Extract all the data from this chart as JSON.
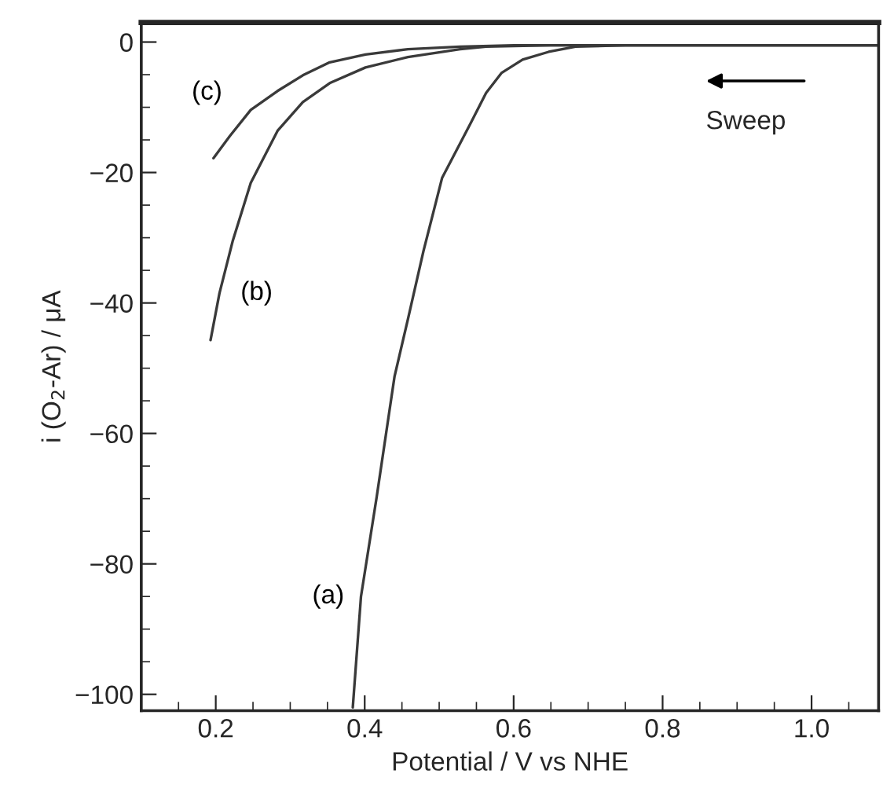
{
  "chart_data": {
    "type": "line",
    "xlabel": "Potential / V vs NHE",
    "ylabel": "i (O$_{2}$-Ar) / μA",
    "xlim": [
      0.1,
      1.09
    ],
    "ylim": [
      -102.5,
      3
    ],
    "xticks": [
      0.2,
      0.4,
      0.6,
      0.8,
      {
        "value": 1,
        "label": "1.0"
      }
    ],
    "yticks": [
      0,
      {
        "value": -20,
        "label": "−20"
      },
      {
        "value": -40,
        "label": "−40"
      },
      {
        "value": -60,
        "label": "−60"
      },
      {
        "value": -80,
        "label": "−80"
      },
      {
        "value": -100,
        "label": "−100"
      }
    ],
    "grid": false,
    "legend": false,
    "marker": "none",
    "line_style": "solid",
    "series": [
      {
        "name": "(a)",
        "color": "#3a3a3a",
        "x": [
          0.384,
          0.395,
          0.416,
          0.44,
          0.458,
          0.479,
          0.504,
          0.542,
          0.563,
          0.584,
          0.612,
          0.647,
          0.683,
          0.75,
          0.85,
          0.95,
          1.05,
          1.09
        ],
        "values": [
          -102,
          -85,
          -69.8,
          -51.3,
          -42.5,
          -32,
          -20.8,
          -12.5,
          -7.8,
          -4.7,
          -2.7,
          -1.5,
          -0.7,
          -0.5,
          -0.5,
          -0.5,
          -0.5,
          -0.5
        ]
      },
      {
        "name": "(b)",
        "color": "#3a3a3a",
        "x": [
          0.193,
          0.205,
          0.223,
          0.247,
          0.283,
          0.317,
          0.353,
          0.401,
          0.458,
          0.528,
          0.563,
          0.65,
          0.8,
          0.95,
          1.09
        ],
        "values": [
          -45.7,
          -38.5,
          -30.4,
          -21.6,
          -13.6,
          -9.2,
          -6.3,
          -3.9,
          -2.3,
          -1.1,
          -0.7,
          -0.5,
          -0.5,
          -0.5,
          -0.5
        ]
      },
      {
        "name": "(c)",
        "color": "#3a3a3a",
        "x": [
          0.197,
          0.219,
          0.247,
          0.283,
          0.317,
          0.353,
          0.401,
          0.458,
          0.528,
          0.6,
          0.8,
          0.95,
          1.09
        ],
        "values": [
          -17.8,
          -14.4,
          -10.4,
          -7.5,
          -5.1,
          -3.1,
          -1.9,
          -1.1,
          -0.7,
          -0.5,
          -0.5,
          -0.5,
          -0.5
        ]
      }
    ],
    "annotations": [
      "Sweep"
    ]
  }
}
